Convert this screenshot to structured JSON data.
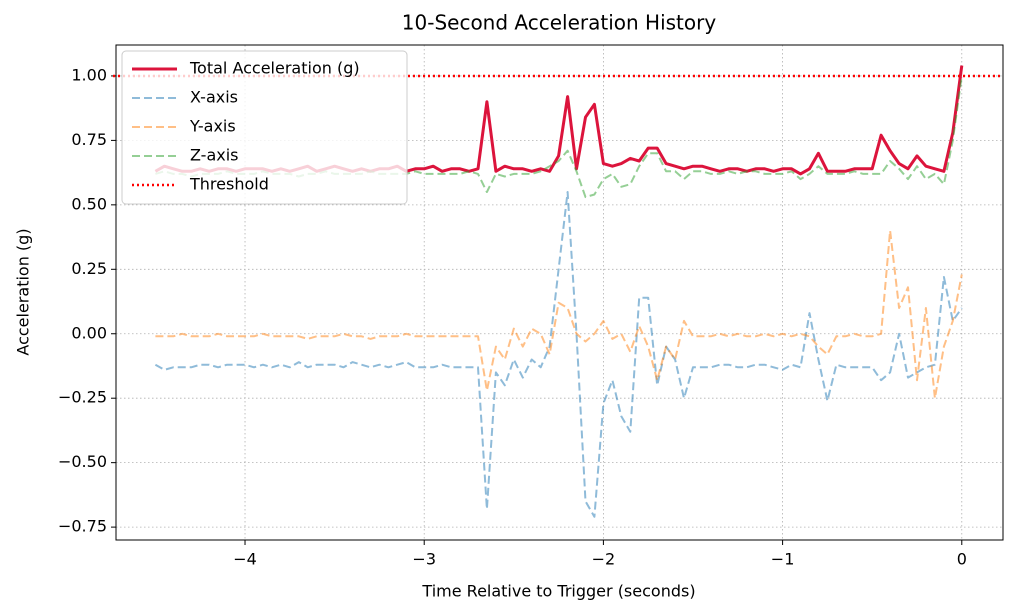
{
  "chart_data": {
    "type": "line",
    "title": "10-Second Acceleration History",
    "x_label": "Time Relative to Trigger (seconds)",
    "y_label": "Acceleration (g)",
    "x": [
      -4.5,
      -4.45,
      -4.4,
      -4.35,
      -4.3,
      -4.25,
      -4.2,
      -4.15,
      -4.1,
      -4.05,
      -4.0,
      -3.95,
      -3.9,
      -3.85,
      -3.8,
      -3.75,
      -3.7,
      -3.65,
      -3.6,
      -3.55,
      -3.5,
      -3.45,
      -3.4,
      -3.35,
      -3.3,
      -3.25,
      -3.2,
      -3.15,
      -3.1,
      -3.05,
      -3.0,
      -2.95,
      -2.9,
      -2.85,
      -2.8,
      -2.75,
      -2.7,
      -2.65,
      -2.6,
      -2.55,
      -2.5,
      -2.45,
      -2.4,
      -2.35,
      -2.3,
      -2.25,
      -2.2,
      -2.15,
      -2.1,
      -2.05,
      -2.0,
      -1.95,
      -1.9,
      -1.85,
      -1.8,
      -1.75,
      -1.7,
      -1.65,
      -1.6,
      -1.55,
      -1.5,
      -1.45,
      -1.4,
      -1.35,
      -1.3,
      -1.25,
      -1.2,
      -1.15,
      -1.1,
      -1.05,
      -1.0,
      -0.95,
      -0.9,
      -0.85,
      -0.8,
      -0.75,
      -0.7,
      -0.65,
      -0.6,
      -0.55,
      -0.5,
      -0.45,
      -0.4,
      -0.35,
      -0.3,
      -0.25,
      -0.2,
      -0.15,
      -0.1,
      -0.05,
      0
    ],
    "series": [
      {
        "name": "Total Acceleration (g)",
        "color": "#dc143c",
        "dash": "solid",
        "width": 3,
        "opacity": 1,
        "values": [
          0.63,
          0.65,
          0.64,
          0.63,
          0.63,
          0.64,
          0.63,
          0.64,
          0.64,
          0.63,
          0.64,
          0.64,
          0.64,
          0.63,
          0.64,
          0.63,
          0.64,
          0.65,
          0.63,
          0.64,
          0.65,
          0.64,
          0.63,
          0.64,
          0.63,
          0.64,
          0.64,
          0.65,
          0.63,
          0.64,
          0.64,
          0.65,
          0.63,
          0.64,
          0.64,
          0.63,
          0.64,
          0.9,
          0.63,
          0.65,
          0.64,
          0.64,
          0.63,
          0.64,
          0.63,
          0.69,
          0.92,
          0.64,
          0.84,
          0.89,
          0.66,
          0.65,
          0.66,
          0.68,
          0.67,
          0.72,
          0.72,
          0.66,
          0.65,
          0.64,
          0.65,
          0.65,
          0.64,
          0.63,
          0.64,
          0.64,
          0.63,
          0.64,
          0.64,
          0.63,
          0.64,
          0.64,
          0.62,
          0.64,
          0.7,
          0.63,
          0.63,
          0.63,
          0.64,
          0.64,
          0.64,
          0.77,
          0.71,
          0.66,
          0.64,
          0.69,
          0.65,
          0.64,
          0.63,
          0.78,
          1.04
        ]
      },
      {
        "name": "X-axis",
        "color": "#1f77b4",
        "dash": "dashed",
        "width": 2,
        "opacity": 0.5,
        "values": [
          -0.12,
          -0.14,
          -0.13,
          -0.13,
          -0.13,
          -0.12,
          -0.12,
          -0.13,
          -0.12,
          -0.12,
          -0.12,
          -0.13,
          -0.12,
          -0.13,
          -0.12,
          -0.13,
          -0.11,
          -0.13,
          -0.12,
          -0.12,
          -0.12,
          -0.13,
          -0.11,
          -0.12,
          -0.13,
          -0.12,
          -0.13,
          -0.12,
          -0.11,
          -0.13,
          -0.13,
          -0.13,
          -0.12,
          -0.13,
          -0.13,
          -0.13,
          -0.13,
          -0.68,
          -0.15,
          -0.2,
          -0.1,
          -0.17,
          -0.1,
          -0.13,
          -0.05,
          0.25,
          0.55,
          0.0,
          -0.65,
          -0.71,
          -0.27,
          -0.18,
          -0.32,
          -0.38,
          0.14,
          0.14,
          -0.2,
          -0.05,
          -0.1,
          -0.25,
          -0.13,
          -0.13,
          -0.13,
          -0.12,
          -0.12,
          -0.13,
          -0.13,
          -0.12,
          -0.12,
          -0.13,
          -0.14,
          -0.12,
          -0.13,
          0.08,
          -0.1,
          -0.26,
          -0.12,
          -0.13,
          -0.13,
          -0.13,
          -0.13,
          -0.18,
          -0.15,
          0.0,
          -0.17,
          -0.15,
          -0.13,
          -0.12,
          0.22,
          0.05,
          0.1
        ]
      },
      {
        "name": "Y-axis",
        "color": "#ff7f0e",
        "dash": "dashed",
        "width": 2,
        "opacity": 0.5,
        "values": [
          -0.01,
          -0.01,
          -0.01,
          0.0,
          -0.01,
          -0.01,
          -0.01,
          0.0,
          -0.01,
          -0.01,
          -0.01,
          -0.01,
          0.0,
          -0.01,
          -0.01,
          -0.01,
          -0.01,
          -0.02,
          -0.01,
          -0.01,
          -0.01,
          0.0,
          -0.01,
          -0.01,
          -0.02,
          -0.01,
          -0.01,
          -0.01,
          0.0,
          -0.01,
          -0.01,
          -0.01,
          -0.01,
          -0.01,
          -0.01,
          -0.01,
          -0.01,
          -0.22,
          -0.05,
          -0.1,
          0.02,
          -0.05,
          0.02,
          0.0,
          -0.08,
          0.12,
          0.1,
          0.0,
          -0.03,
          0.0,
          0.05,
          -0.02,
          0.0,
          -0.07,
          0.03,
          -0.05,
          -0.18,
          -0.05,
          -0.1,
          0.05,
          -0.01,
          -0.01,
          -0.01,
          0.0,
          -0.01,
          0.0,
          -0.01,
          -0.01,
          0.0,
          -0.01,
          0.0,
          -0.01,
          0.0,
          -0.01,
          -0.05,
          -0.08,
          -0.01,
          -0.01,
          0.0,
          -0.01,
          -0.01,
          0.0,
          0.4,
          0.1,
          0.18,
          -0.18,
          0.1,
          -0.25,
          -0.05,
          0.05,
          0.23
        ]
      },
      {
        "name": "Z-axis",
        "color": "#2ca02c",
        "dash": "dashed",
        "width": 2,
        "opacity": 0.5,
        "values": [
          0.62,
          0.63,
          0.62,
          0.62,
          0.61,
          0.62,
          0.62,
          0.62,
          0.63,
          0.62,
          0.62,
          0.62,
          0.63,
          0.62,
          0.62,
          0.62,
          0.61,
          0.62,
          0.62,
          0.63,
          0.62,
          0.62,
          0.62,
          0.62,
          0.63,
          0.62,
          0.62,
          0.62,
          0.62,
          0.63,
          0.62,
          0.62,
          0.62,
          0.62,
          0.62,
          0.63,
          0.62,
          0.55,
          0.62,
          0.61,
          0.62,
          0.62,
          0.62,
          0.63,
          0.65,
          0.67,
          0.71,
          0.63,
          0.53,
          0.54,
          0.6,
          0.62,
          0.57,
          0.58,
          0.65,
          0.7,
          0.7,
          0.63,
          0.63,
          0.6,
          0.63,
          0.63,
          0.62,
          0.62,
          0.63,
          0.62,
          0.63,
          0.63,
          0.62,
          0.62,
          0.62,
          0.63,
          0.6,
          0.62,
          0.65,
          0.62,
          0.62,
          0.62,
          0.63,
          0.62,
          0.62,
          0.62,
          0.67,
          0.64,
          0.6,
          0.65,
          0.6,
          0.62,
          0.58,
          0.75,
          1.0
        ]
      }
    ],
    "threshold": {
      "name": "Threshold",
      "value": 1.0,
      "color": "#ff0000"
    },
    "xlim": [
      -4.72,
      0.23
    ],
    "ylim": [
      -0.8,
      1.12
    ],
    "xticks": [
      {
        "value": -4,
        "label": "−4"
      },
      {
        "value": -3,
        "label": "−3"
      },
      {
        "value": -2,
        "label": "−2"
      },
      {
        "value": -1,
        "label": "−1"
      },
      0
    ],
    "yticks": [
      {
        "value": -0.75,
        "label": "−0.75"
      },
      {
        "value": -0.5,
        "label": "−0.50"
      },
      {
        "value": -0.25,
        "label": "−0.25"
      },
      {
        "value": 0,
        "label": "0.00"
      },
      {
        "value": 0.25,
        "label": "0.25"
      },
      {
        "value": 0.5,
        "label": "0.50"
      },
      {
        "value": 0.75,
        "label": "0.75"
      },
      {
        "value": 1,
        "label": "1.00"
      }
    ],
    "grid": true,
    "legend": "upper left"
  }
}
